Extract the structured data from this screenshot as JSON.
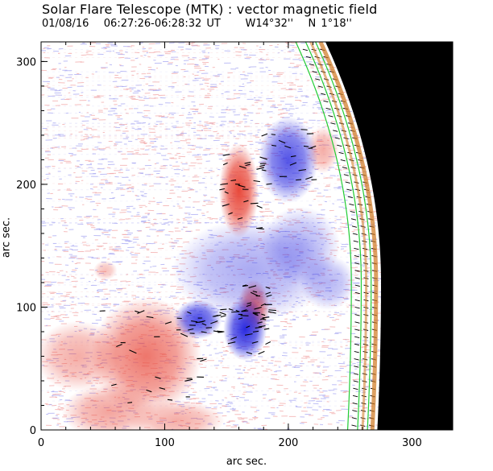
{
  "title": "Solar Flare Telescope (MTK) : vector magnetic field",
  "subtitle": "01/08/16   06:27:26-06:28:32 UT     W14°32''   N 1°18''",
  "colors": {
    "positive_polarity": "#e8483a",
    "negative_polarity": "#2a2ae0",
    "noise_red": "#f2a8a8",
    "noise_blue": "#a8a8f2",
    "limb_green": "#22cc33",
    "limb_orange": "#d07820",
    "off_disk": "#000000",
    "axis": "#000000"
  },
  "chart_data": {
    "type": "heatmap",
    "title": "Solar Flare Telescope (MTK) : vector magnetic field",
    "subtitle": "01/08/16   06:27:26-06:28:32 UT     W14°32''   N 1°18''",
    "xlabel": "arc sec.",
    "ylabel": "arc sec.",
    "xlim": [
      0,
      333
    ],
    "ylim": [
      0,
      316
    ],
    "xticks": [
      0,
      100,
      200,
      300
    ],
    "yticks": [
      0,
      100,
      200,
      300
    ],
    "x_tick_labels": [
      "0",
      "100",
      "200",
      "300"
    ],
    "y_tick_labels": [
      "0",
      "100",
      "200",
      "300"
    ],
    "grid": false,
    "legend": "none",
    "positive_regions": [
      {
        "x": 160,
        "y": 195,
        "rx": 10,
        "ry": 24,
        "strength": 1.0
      },
      {
        "x": 172,
        "y": 100,
        "rx": 8,
        "ry": 14,
        "strength": 0.85
      },
      {
        "x": 85,
        "y": 60,
        "rx": 28,
        "ry": 30,
        "strength": 0.75
      },
      {
        "x": 30,
        "y": 60,
        "rx": 22,
        "ry": 18,
        "strength": 0.45
      },
      {
        "x": 55,
        "y": 15,
        "rx": 24,
        "ry": 14,
        "strength": 0.5
      },
      {
        "x": 110,
        "y": 8,
        "rx": 24,
        "ry": 10,
        "strength": 0.45
      },
      {
        "x": 228,
        "y": 228,
        "rx": 8,
        "ry": 12,
        "strength": 0.45
      },
      {
        "x": 52,
        "y": 130,
        "rx": 6,
        "ry": 5,
        "strength": 0.35
      }
    ],
    "negative_regions": [
      {
        "x": 165,
        "y": 82,
        "rx": 11,
        "ry": 16,
        "strength": 1.0
      },
      {
        "x": 127,
        "y": 90,
        "rx": 12,
        "ry": 10,
        "strength": 0.85
      },
      {
        "x": 200,
        "y": 220,
        "rx": 15,
        "ry": 22,
        "strength": 0.8
      },
      {
        "x": 170,
        "y": 130,
        "rx": 40,
        "ry": 26,
        "strength": 0.4
      },
      {
        "x": 210,
        "y": 150,
        "rx": 20,
        "ry": 20,
        "strength": 0.35
      },
      {
        "x": 232,
        "y": 120,
        "rx": 14,
        "ry": 14,
        "strength": 0.35
      }
    ],
    "limb": {
      "x_at_top": 230,
      "x_at_middle": 275,
      "x_at_bottom": 272,
      "y_middle": 120
    }
  }
}
